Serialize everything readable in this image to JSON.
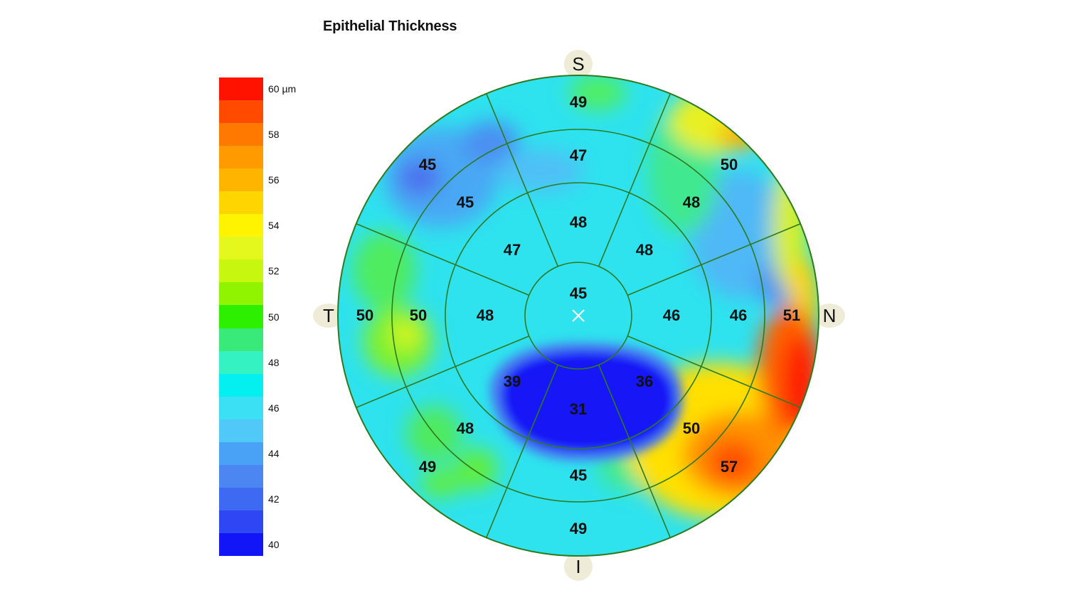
{
  "title": "Epithelial Thickness",
  "legend": {
    "unit_label": "60 µm",
    "labels": [
      "58",
      "56",
      "54",
      "52",
      "50",
      "48",
      "46",
      "44",
      "42",
      "40"
    ],
    "colors": [
      "#ff1200",
      "#ff4a00",
      "#ff7800",
      "#ff9a00",
      "#ffb400",
      "#ffd500",
      "#fff400",
      "#e4f81d",
      "#c8f70f",
      "#90f400",
      "#2cf000",
      "#39ea7a",
      "#35f2c2",
      "#04f0f0",
      "#3be0f4",
      "#50c8f8",
      "#4aa2f6",
      "#4c86f2",
      "#3e6af3",
      "#2f46f5",
      "#1216f7"
    ]
  },
  "directions": {
    "superior": "S",
    "inferior": "I",
    "temporal": "T",
    "nasal": "N"
  },
  "zones": {
    "center": "45",
    "inner": {
      "S": "48",
      "SN": "48",
      "N": "46",
      "IN": "36",
      "I": "31",
      "IT": "39",
      "T": "48",
      "ST": "47"
    },
    "middle": {
      "S": "47",
      "SN": "48",
      "N": "46",
      "IN": "50",
      "I": "45",
      "IT": "48",
      "T": "50",
      "ST": "45"
    },
    "outer": {
      "S": "49",
      "SN": "50",
      "N": "51",
      "IN": "57",
      "I": "49",
      "IT": "49",
      "T": "50",
      "ST": "45"
    }
  },
  "colors": {
    "ring_line": "#2f7a1f",
    "background_map": "#2fe0ee",
    "label_bg": "#eeecd6"
  }
}
